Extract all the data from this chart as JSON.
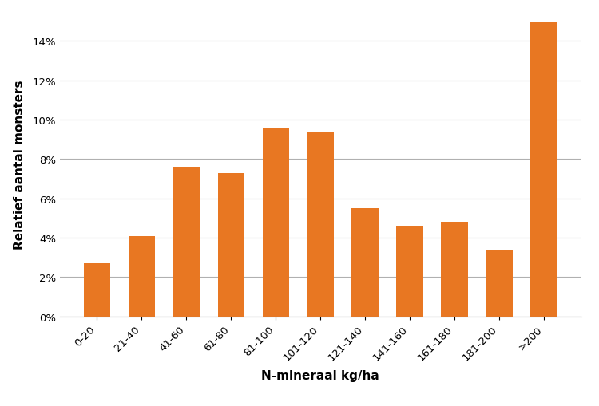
{
  "categories": [
    "0-20",
    "21-40",
    "41-60",
    "61-80",
    "81-100",
    "101-120",
    "121-140",
    "141-160",
    "161-180",
    "181-200",
    ">200"
  ],
  "values": [
    0.027,
    0.041,
    0.076,
    0.073,
    0.096,
    0.094,
    0.055,
    0.046,
    0.048,
    0.034,
    0.15
  ],
  "bar_color": "#E87722",
  "xlabel": "N-mineraal kg/ha",
  "ylabel": "Relatief aantal monsters",
  "ylim": [
    0,
    0.155
  ],
  "yticks": [
    0,
    0.02,
    0.04,
    0.06,
    0.08,
    0.1,
    0.12,
    0.14
  ],
  "background_color": "#ffffff",
  "grid_color": "#b0b0b0",
  "xlabel_fontsize": 11,
  "ylabel_fontsize": 11,
  "tick_fontsize": 9.5
}
